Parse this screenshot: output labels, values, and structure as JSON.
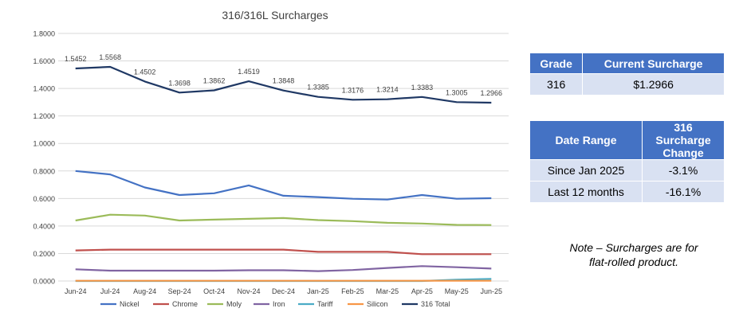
{
  "chart_data": {
    "type": "line",
    "title": "316/316L Surcharges",
    "categories": [
      "Jun-24",
      "Jul-24",
      "Aug-24",
      "Sep-24",
      "Oct-24",
      "Nov-24",
      "Dec-24",
      "Jan-25",
      "Feb-25",
      "Mar-25",
      "Apr-25",
      "May-25",
      "Jun-25"
    ],
    "ylim": [
      0,
      1.8
    ],
    "yticks": [
      "0.0000",
      "0.2000",
      "0.4000",
      "0.6000",
      "0.8000",
      "1.0000",
      "1.2000",
      "1.4000",
      "1.6000",
      "1.8000"
    ],
    "grid": true,
    "legend_position": "bottom",
    "series": [
      {
        "name": "Nickel",
        "color": "#4472c4",
        "values": [
          0.8,
          0.775,
          0.68,
          0.625,
          0.638,
          0.695,
          0.62,
          0.61,
          0.598,
          0.592,
          0.625,
          0.598,
          0.602
        ]
      },
      {
        "name": "Chrome",
        "color": "#c0504d",
        "values": [
          0.222,
          0.228,
          0.228,
          0.228,
          0.228,
          0.228,
          0.228,
          0.212,
          0.212,
          0.212,
          0.195,
          0.195,
          0.195
        ]
      },
      {
        "name": "Moly",
        "color": "#9bbb59",
        "values": [
          0.44,
          0.482,
          0.476,
          0.44,
          0.446,
          0.452,
          0.458,
          0.443,
          0.435,
          0.423,
          0.418,
          0.408,
          0.407
        ]
      },
      {
        "name": "Iron",
        "color": "#8064a2",
        "values": [
          0.085,
          0.075,
          0.075,
          0.075,
          0.075,
          0.078,
          0.078,
          0.072,
          0.08,
          0.095,
          0.108,
          0.1,
          0.09
        ]
      },
      {
        "name": "Tariff",
        "color": "#4bacc6",
        "values": [
          0,
          0,
          0,
          0,
          0,
          0,
          0,
          0,
          0,
          0,
          0,
          0.01,
          0.015
        ]
      },
      {
        "name": "Silicon",
        "color": "#f79646",
        "values": [
          0.002,
          0.002,
          0.002,
          0.002,
          0.002,
          0.002,
          0.002,
          0.002,
          0.002,
          0.002,
          0.002,
          0.002,
          0.002
        ]
      },
      {
        "name": "316 Total",
        "color": "#1f3864",
        "values": [
          1.5452,
          1.5568,
          1.4502,
          1.3698,
          1.3862,
          1.4519,
          1.3848,
          1.3385,
          1.3176,
          1.3214,
          1.3383,
          1.3005,
          1.2966
        ],
        "labels": [
          "1.5452",
          "1.5568",
          "1.4502",
          "1.3698",
          "1.3862",
          "1.4519",
          "1.3848",
          "1.3385",
          "1.3176",
          "1.3214",
          "1.3383",
          "1.3005",
          "1.2966"
        ]
      }
    ]
  },
  "grade_table": {
    "header": [
      "Grade",
      "Current Surcharge"
    ],
    "row": [
      "316",
      "$1.2966"
    ]
  },
  "range_table": {
    "header": [
      "Date Range",
      "316 Surcharge Change"
    ],
    "rows": [
      [
        "Since Jan 2025",
        "-3.1%"
      ],
      [
        "Last 12 months",
        "-16.1%"
      ]
    ]
  },
  "note": {
    "line1": "Note – Surcharges are for",
    "line2": "flat-rolled product."
  }
}
